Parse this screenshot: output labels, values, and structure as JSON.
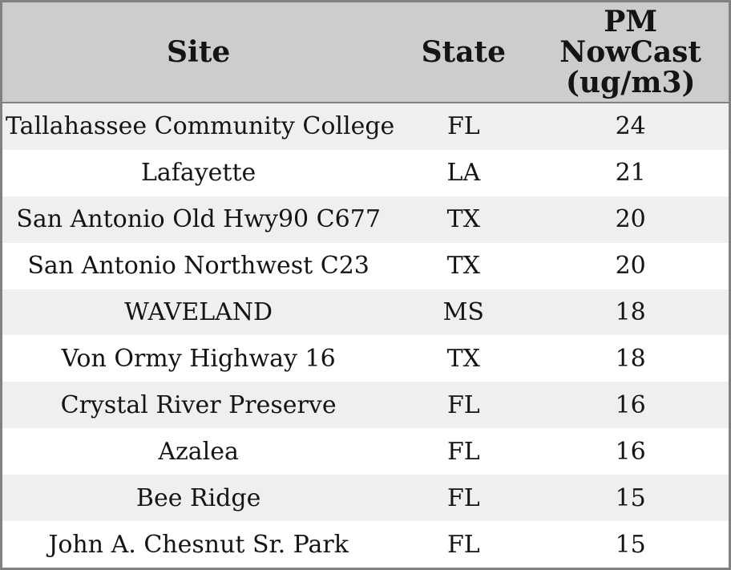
{
  "header": {
    "site_label": "Site",
    "state_label": "State",
    "pm_label": "PM\nNowCast\n(ug/m3)"
  },
  "colors": {
    "header_bg": "#cdcdcd",
    "row_odd_bg": "#efefef",
    "row_even_bg": "#ffffff",
    "border": "#818181",
    "text": "#141414"
  },
  "chart_data": {
    "type": "table",
    "title": "",
    "columns": [
      "Site",
      "State",
      "PM NowCast (ug/m3)"
    ],
    "rows": [
      {
        "site": "Tallahassee Community College",
        "state": "FL",
        "pm_nowcast": 24
      },
      {
        "site": "Lafayette",
        "state": "LA",
        "pm_nowcast": 21
      },
      {
        "site": "San Antonio Old Hwy90 C677",
        "state": "TX",
        "pm_nowcast": 20
      },
      {
        "site": "San Antonio Northwest C23",
        "state": "TX",
        "pm_nowcast": 20
      },
      {
        "site": "WAVELAND",
        "state": "MS",
        "pm_nowcast": 18
      },
      {
        "site": "Von Ormy Highway 16",
        "state": "TX",
        "pm_nowcast": 18
      },
      {
        "site": "Crystal River Preserve",
        "state": "FL",
        "pm_nowcast": 16
      },
      {
        "site": "Azalea",
        "state": "FL",
        "pm_nowcast": 16
      },
      {
        "site": "Bee Ridge",
        "state": "FL",
        "pm_nowcast": 15
      },
      {
        "site": "John A. Chesnut Sr. Park",
        "state": "FL",
        "pm_nowcast": 15
      }
    ],
    "layout": {
      "header_position": "top",
      "row_striping": true,
      "text_alignment": "center"
    }
  }
}
